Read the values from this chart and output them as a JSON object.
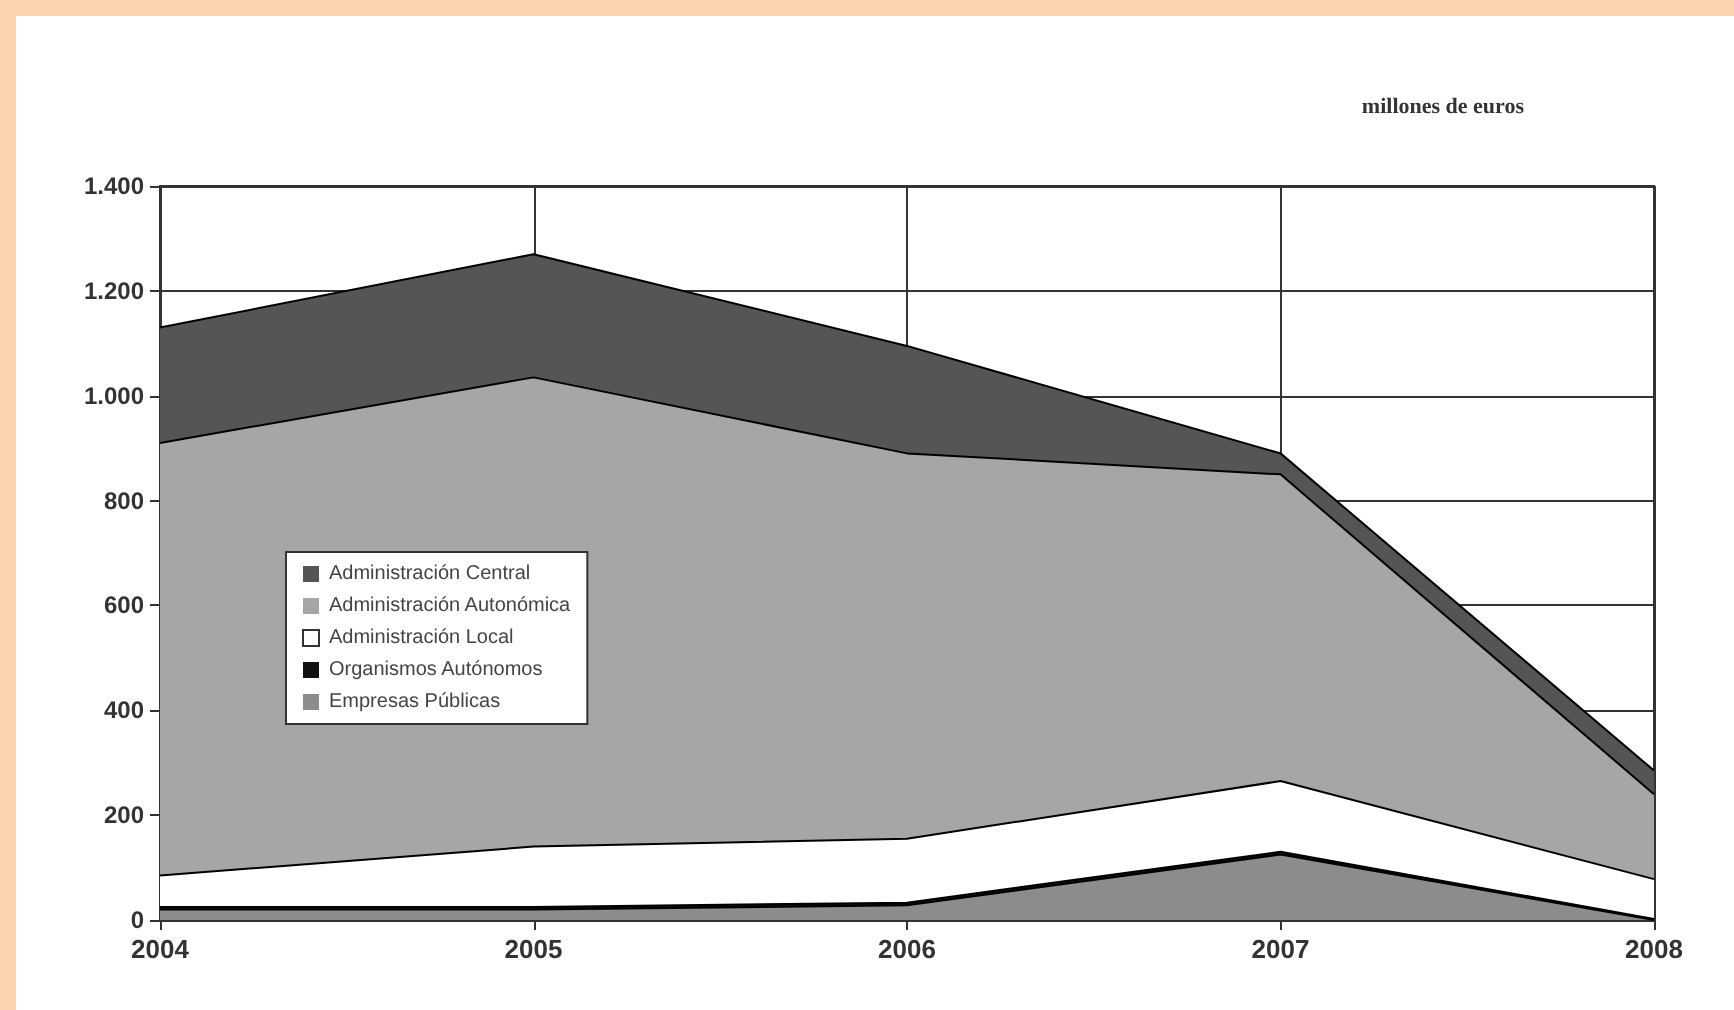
{
  "chart_data": {
    "type": "area",
    "stacked": true,
    "categories": [
      "2004",
      "2005",
      "2006",
      "2007",
      "2008"
    ],
    "series": [
      {
        "name": "Empresas Públicas",
        "color": "#8c8c8c",
        "values": [
          20,
          20,
          28,
          125,
          0
        ]
      },
      {
        "name": "Organismos Autónomos",
        "color": "#111111",
        "values": [
          5,
          5,
          5,
          5,
          2
        ]
      },
      {
        "name": "Administración Local",
        "color": "#ffffff",
        "values": [
          60,
          115,
          122,
          135,
          76
        ]
      },
      {
        "name": "Administración Autonómica",
        "color": "#a6a6a6",
        "values": [
          825,
          895,
          735,
          585,
          162
        ]
      },
      {
        "name": "Administración Central",
        "color": "#555555",
        "values": [
          220,
          235,
          205,
          40,
          45
        ]
      }
    ],
    "ylim": [
      0,
      1400
    ],
    "yticks": [
      0,
      200,
      400,
      600,
      800,
      {
        "value": 1000,
        "label": "1.000"
      },
      {
        "value": 1200,
        "label": "1.200"
      },
      {
        "value": 1400,
        "label": "1.400"
      }
    ],
    "annotations": [
      "millones de euros"
    ],
    "grid": true,
    "legend": "left",
    "marker": "none"
  }
}
